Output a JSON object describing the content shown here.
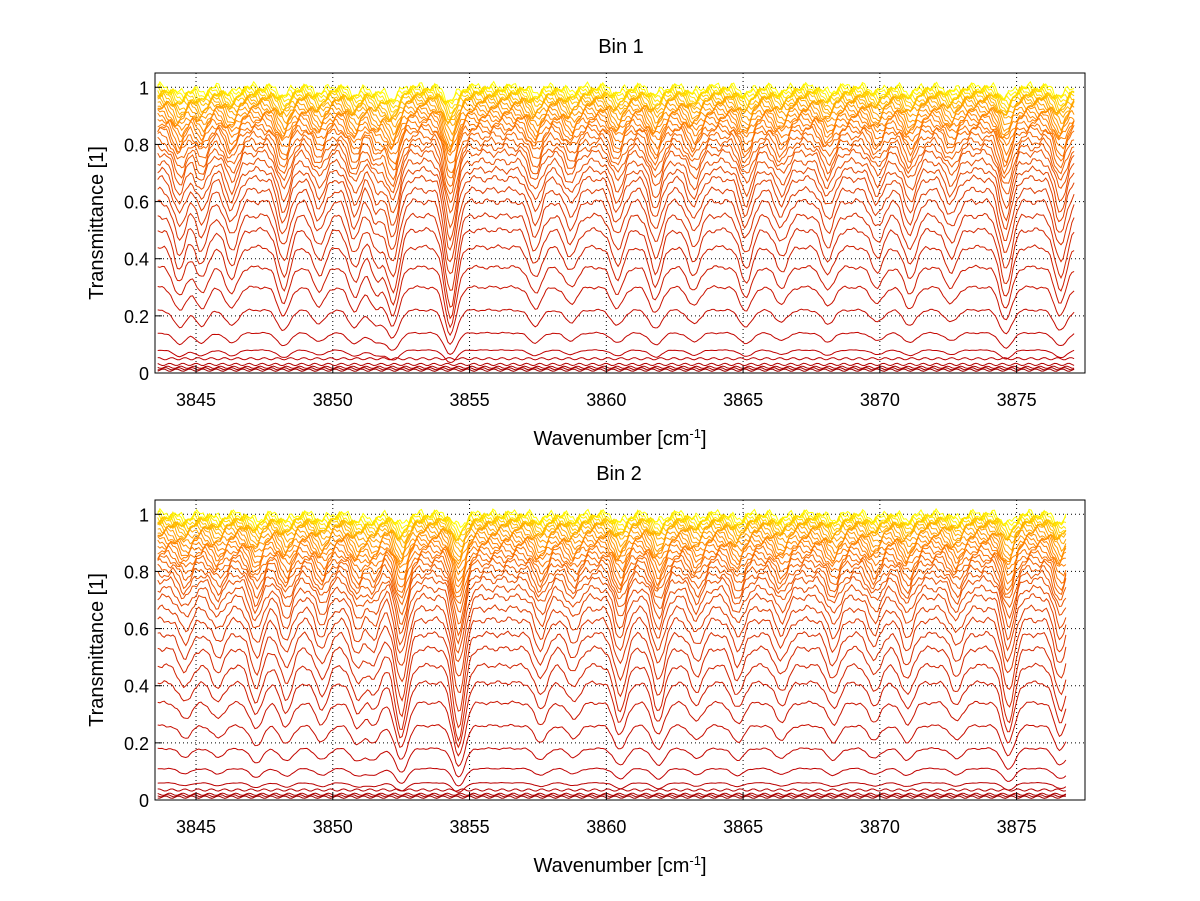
{
  "chart_data": [
    {
      "type": "line",
      "title": "Bin 1",
      "xlabel": "Wavenumber [cm",
      "xlabel_sup": "-1",
      "xlabel_suffix": "]",
      "ylabel": "Transmittance [1]",
      "xlim": [
        3843.5,
        3877.5
      ],
      "ylim": [
        0,
        1.05
      ],
      "xticks": [
        3845,
        3850,
        3855,
        3860,
        3865,
        3870,
        3875
      ],
      "yticks": [
        0,
        0.2,
        0.4,
        0.6,
        0.8,
        1
      ],
      "ytick_labels": [
        "0",
        "0.2",
        "0.4",
        "0.6",
        "0.8",
        "1"
      ],
      "grid": true,
      "x_range": [
        3843.6,
        3877.1
      ],
      "absorption_lines": [
        {
          "x": 3844.4,
          "depth": 0.5
        },
        {
          "x": 3845.2,
          "depth": 0.45
        },
        {
          "x": 3846.3,
          "depth": 0.45
        },
        {
          "x": 3848.2,
          "depth": 0.6
        },
        {
          "x": 3849.5,
          "depth": 0.4
        },
        {
          "x": 3850.8,
          "depth": 0.5
        },
        {
          "x": 3851.6,
          "depth": 0.45
        },
        {
          "x": 3852.2,
          "depth": 0.8
        },
        {
          "x": 3854.3,
          "depth": 1.0
        },
        {
          "x": 3857.4,
          "depth": 0.45
        },
        {
          "x": 3858.7,
          "depth": 0.35
        },
        {
          "x": 3860.4,
          "depth": 0.45
        },
        {
          "x": 3861.8,
          "depth": 0.55
        },
        {
          "x": 3863.2,
          "depth": 0.4
        },
        {
          "x": 3865.1,
          "depth": 0.5
        },
        {
          "x": 3866.4,
          "depth": 0.35
        },
        {
          "x": 3868.1,
          "depth": 0.4
        },
        {
          "x": 3869.9,
          "depth": 0.35
        },
        {
          "x": 3871.1,
          "depth": 0.45
        },
        {
          "x": 3872.6,
          "depth": 0.35
        },
        {
          "x": 3874.6,
          "depth": 0.7
        },
        {
          "x": 3876.6,
          "depth": 0.6
        }
      ],
      "series_levels": [
        1.0,
        0.995,
        0.99,
        0.985,
        0.98,
        0.975,
        0.97,
        0.96,
        0.955,
        0.95,
        0.94,
        0.93,
        0.92,
        0.91,
        0.9,
        0.89,
        0.875,
        0.86,
        0.85,
        0.83,
        0.81,
        0.79,
        0.77,
        0.74,
        0.71,
        0.68,
        0.64,
        0.6,
        0.55,
        0.5,
        0.44,
        0.37,
        0.3,
        0.22,
        0.14,
        0.08,
        0.05,
        0.03,
        0.02,
        0.015,
        0.01
      ],
      "colors": [
        "#ffff00",
        "#ffcc00",
        "#ffa000",
        "#ff8000",
        "#f06000",
        "#e04000",
        "#d02000",
        "#c00000",
        "#a00000"
      ]
    },
    {
      "type": "line",
      "title": "Bin 2",
      "xlabel": "Wavenumber [cm",
      "xlabel_sup": "-1",
      "xlabel_suffix": "]",
      "ylabel": "Transmittance [1]",
      "xlim": [
        3843.5,
        3877.5
      ],
      "ylim": [
        0,
        1.05
      ],
      "xticks": [
        3845,
        3850,
        3855,
        3860,
        3865,
        3870,
        3875
      ],
      "yticks": [
        0,
        0.2,
        0.4,
        0.6,
        0.8,
        1
      ],
      "ytick_labels": [
        "0",
        "0.2",
        "0.4",
        "0.6",
        "0.8",
        "1"
      ],
      "grid": true,
      "x_range": [
        3843.6,
        3876.8
      ],
      "absorption_lines": [
        {
          "x": 3844.6,
          "depth": 0.3
        },
        {
          "x": 3845.8,
          "depth": 0.3
        },
        {
          "x": 3847.2,
          "depth": 0.5
        },
        {
          "x": 3848.3,
          "depth": 0.45
        },
        {
          "x": 3849.6,
          "depth": 0.4
        },
        {
          "x": 3850.9,
          "depth": 0.45
        },
        {
          "x": 3851.5,
          "depth": 0.4
        },
        {
          "x": 3852.5,
          "depth": 0.85
        },
        {
          "x": 3854.6,
          "depth": 1.0
        },
        {
          "x": 3857.6,
          "depth": 0.4
        },
        {
          "x": 3858.8,
          "depth": 0.3
        },
        {
          "x": 3860.5,
          "depth": 0.6
        },
        {
          "x": 3861.9,
          "depth": 0.6
        },
        {
          "x": 3863.3,
          "depth": 0.35
        },
        {
          "x": 3864.8,
          "depth": 0.4
        },
        {
          "x": 3866.4,
          "depth": 0.35
        },
        {
          "x": 3868.3,
          "depth": 0.4
        },
        {
          "x": 3869.8,
          "depth": 0.35
        },
        {
          "x": 3871.0,
          "depth": 0.4
        },
        {
          "x": 3872.8,
          "depth": 0.35
        },
        {
          "x": 3874.7,
          "depth": 0.75
        },
        {
          "x": 3876.6,
          "depth": 0.6
        }
      ],
      "series_levels": [
        1.0,
        0.995,
        0.99,
        0.985,
        0.98,
        0.975,
        0.97,
        0.965,
        0.96,
        0.95,
        0.94,
        0.93,
        0.92,
        0.91,
        0.9,
        0.89,
        0.875,
        0.86,
        0.845,
        0.83,
        0.81,
        0.79,
        0.77,
        0.74,
        0.71,
        0.67,
        0.63,
        0.58,
        0.53,
        0.47,
        0.41,
        0.34,
        0.26,
        0.18,
        0.11,
        0.06,
        0.035,
        0.02,
        0.015,
        0.01
      ],
      "colors": [
        "#ffff00",
        "#ffcc00",
        "#ffa000",
        "#ff8000",
        "#f06000",
        "#e04000",
        "#d02000",
        "#c00000",
        "#a00000"
      ]
    }
  ]
}
